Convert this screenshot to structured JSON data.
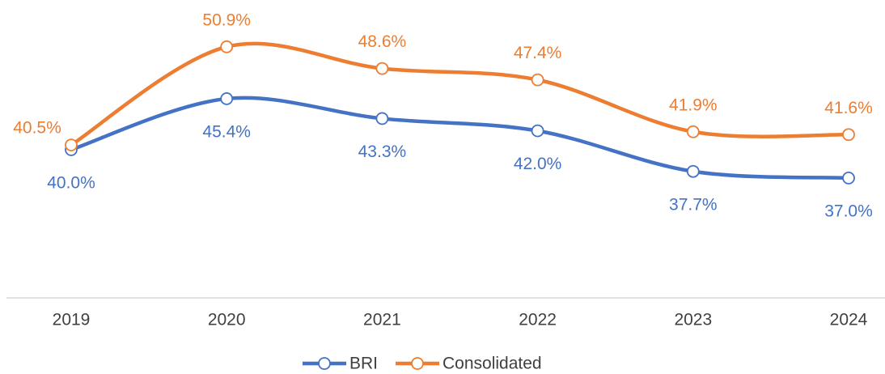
{
  "chart_data": {
    "type": "line",
    "categories": [
      "2019",
      "2020",
      "2021",
      "2022",
      "2023",
      "2024"
    ],
    "series": [
      {
        "name": "BRI",
        "color": "#4472c4",
        "values": [
          40.0,
          45.4,
          43.3,
          42.0,
          37.7,
          37.0
        ],
        "value_labels": [
          "40.0%",
          "45.4%",
          "43.3%",
          "42.0%",
          "37.7%",
          "37.0%"
        ]
      },
      {
        "name": "Consolidated",
        "color": "#ed7d31",
        "values": [
          40.5,
          50.9,
          48.6,
          47.4,
          41.9,
          41.6
        ],
        "value_labels": [
          "40.5%",
          "50.9%",
          "48.6%",
          "47.4%",
          "41.9%",
          "41.6%"
        ]
      }
    ],
    "ylim": [
      24.3,
      55
    ],
    "smooth": true
  }
}
